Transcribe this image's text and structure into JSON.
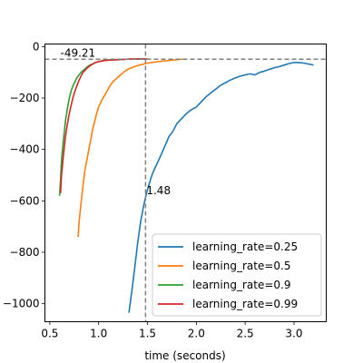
{
  "chart_data": {
    "type": "line",
    "title": "",
    "xlabel": "time (seconds)",
    "ylabel": "",
    "xlim": [
      0.45,
      3.33
    ],
    "ylim": [
      -1070,
      10
    ],
    "xticks": [
      0.5,
      1.0,
      1.5,
      2.0,
      2.5,
      3.0
    ],
    "xtick_labels": [
      "0.5",
      "1.0",
      "1.5",
      "2.0",
      "2.5",
      "3.0"
    ],
    "yticks": [
      0,
      -200,
      -400,
      -600,
      -800,
      -1000
    ],
    "ytick_labels": [
      "0",
      "−200",
      "−400",
      "−600",
      "−800",
      "−1000"
    ],
    "grid": false,
    "legend_position": "lower-right",
    "reference_lines": [
      {
        "orientation": "horizontal",
        "value": -49.21,
        "label": "-49.21",
        "color": "#7f7f7f",
        "style": "dashed"
      },
      {
        "orientation": "vertical",
        "value": 1.48,
        "label": "1.48",
        "color": "#7f7f7f",
        "style": "dashed"
      }
    ],
    "series": [
      {
        "name": "learning_rate=0.25",
        "color": "#1f77b4",
        "points": [
          [
            1.31,
            -1035
          ],
          [
            1.34,
            -950
          ],
          [
            1.37,
            -860
          ],
          [
            1.4,
            -760
          ],
          [
            1.43,
            -680
          ],
          [
            1.46,
            -620
          ],
          [
            1.49,
            -570
          ],
          [
            1.52,
            -530
          ],
          [
            1.55,
            -495
          ],
          [
            1.58,
            -470
          ],
          [
            1.61,
            -445
          ],
          [
            1.64,
            -420
          ],
          [
            1.68,
            -385
          ],
          [
            1.72,
            -350
          ],
          [
            1.76,
            -330
          ],
          [
            1.8,
            -300
          ],
          [
            1.85,
            -280
          ],
          [
            1.9,
            -260
          ],
          [
            1.95,
            -245
          ],
          [
            2.0,
            -235
          ],
          [
            2.05,
            -215
          ],
          [
            2.1,
            -195
          ],
          [
            2.15,
            -180
          ],
          [
            2.2,
            -165
          ],
          [
            2.25,
            -150
          ],
          [
            2.3,
            -140
          ],
          [
            2.35,
            -130
          ],
          [
            2.4,
            -122
          ],
          [
            2.45,
            -115
          ],
          [
            2.5,
            -110
          ],
          [
            2.55,
            -106
          ],
          [
            2.6,
            -110
          ],
          [
            2.65,
            -100
          ],
          [
            2.7,
            -95
          ],
          [
            2.75,
            -88
          ],
          [
            2.8,
            -82
          ],
          [
            2.85,
            -78
          ],
          [
            2.9,
            -72
          ],
          [
            2.95,
            -66
          ],
          [
            3.0,
            -62
          ],
          [
            3.05,
            -62
          ],
          [
            3.1,
            -64
          ],
          [
            3.15,
            -68
          ],
          [
            3.2,
            -72
          ]
        ]
      },
      {
        "name": "learning_rate=0.5",
        "color": "#ff7f0e",
        "points": [
          [
            0.79,
            -740
          ],
          [
            0.8,
            -680
          ],
          [
            0.82,
            -610
          ],
          [
            0.84,
            -540
          ],
          [
            0.86,
            -480
          ],
          [
            0.88,
            -440
          ],
          [
            0.9,
            -400
          ],
          [
            0.92,
            -360
          ],
          [
            0.94,
            -320
          ],
          [
            0.96,
            -290
          ],
          [
            0.98,
            -260
          ],
          [
            1.0,
            -235
          ],
          [
            1.03,
            -210
          ],
          [
            1.06,
            -190
          ],
          [
            1.09,
            -170
          ],
          [
            1.12,
            -150
          ],
          [
            1.15,
            -135
          ],
          [
            1.18,
            -125
          ],
          [
            1.21,
            -115
          ],
          [
            1.24,
            -105
          ],
          [
            1.27,
            -95
          ],
          [
            1.3,
            -88
          ],
          [
            1.34,
            -82
          ],
          [
            1.38,
            -76
          ],
          [
            1.42,
            -72
          ],
          [
            1.46,
            -68
          ],
          [
            1.5,
            -64
          ],
          [
            1.54,
            -62
          ],
          [
            1.58,
            -60
          ],
          [
            1.62,
            -58
          ],
          [
            1.66,
            -56
          ],
          [
            1.7,
            -55
          ],
          [
            1.74,
            -53
          ],
          [
            1.78,
            -52
          ],
          [
            1.82,
            -50
          ],
          [
            1.86,
            -49
          ]
        ]
      },
      {
        "name": "learning_rate=0.9",
        "color": "#2ca02c",
        "points": [
          [
            0.6,
            -580
          ],
          [
            0.61,
            -520
          ],
          [
            0.62,
            -440
          ],
          [
            0.64,
            -360
          ],
          [
            0.66,
            -290
          ],
          [
            0.68,
            -240
          ],
          [
            0.7,
            -200
          ],
          [
            0.72,
            -170
          ],
          [
            0.74,
            -150
          ],
          [
            0.76,
            -135
          ],
          [
            0.78,
            -120
          ],
          [
            0.8,
            -110
          ],
          [
            0.82,
            -100
          ],
          [
            0.85,
            -90
          ],
          [
            0.88,
            -80
          ],
          [
            0.91,
            -72
          ],
          [
            0.95,
            -65
          ],
          [
            1.0,
            -58
          ],
          [
            1.05,
            -54
          ],
          [
            1.1,
            -52
          ],
          [
            1.15,
            -51
          ],
          [
            1.2,
            -50
          ],
          [
            1.25,
            -50
          ],
          [
            1.3,
            -49
          ],
          [
            1.35,
            -49
          ],
          [
            1.4,
            -49
          ],
          [
            1.45,
            -48
          ],
          [
            1.48,
            -48
          ]
        ]
      },
      {
        "name": "learning_rate=0.99",
        "color": "#d62728",
        "points": [
          [
            0.61,
            -570
          ],
          [
            0.62,
            -500
          ],
          [
            0.64,
            -420
          ],
          [
            0.66,
            -350
          ],
          [
            0.68,
            -300
          ],
          [
            0.7,
            -260
          ],
          [
            0.72,
            -225
          ],
          [
            0.74,
            -195
          ],
          [
            0.76,
            -170
          ],
          [
            0.78,
            -150
          ],
          [
            0.8,
            -130
          ],
          [
            0.82,
            -115
          ],
          [
            0.84,
            -100
          ],
          [
            0.87,
            -88
          ],
          [
            0.9,
            -78
          ],
          [
            0.93,
            -70
          ],
          [
            0.96,
            -63
          ],
          [
            1.0,
            -58
          ],
          [
            1.05,
            -55
          ],
          [
            1.1,
            -53
          ],
          [
            1.15,
            -52
          ],
          [
            1.2,
            -51
          ],
          [
            1.25,
            -50
          ],
          [
            1.3,
            -49
          ],
          [
            1.35,
            -48
          ],
          [
            1.4,
            -48
          ],
          [
            1.45,
            -48
          ],
          [
            1.5,
            -48
          ]
        ]
      }
    ]
  }
}
